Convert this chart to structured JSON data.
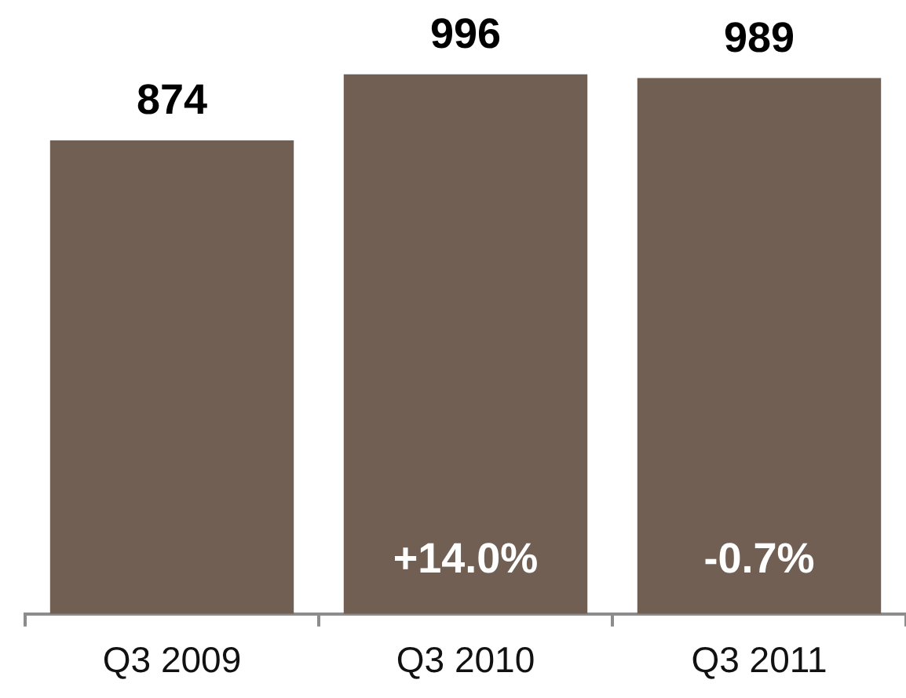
{
  "chart_data": {
    "type": "bar",
    "categories": [
      "Q3 2009",
      "Q3 2010",
      "Q3 2011"
    ],
    "values": [
      874,
      996,
      989
    ],
    "color": "#725f54",
    "ylim": [
      0,
      1000
    ],
    "tick_labels": "x",
    "grid": false,
    "legend": false,
    "data_labels": true,
    "annotations": [
      "+14.0%",
      "-0.7%"
    ]
  }
}
